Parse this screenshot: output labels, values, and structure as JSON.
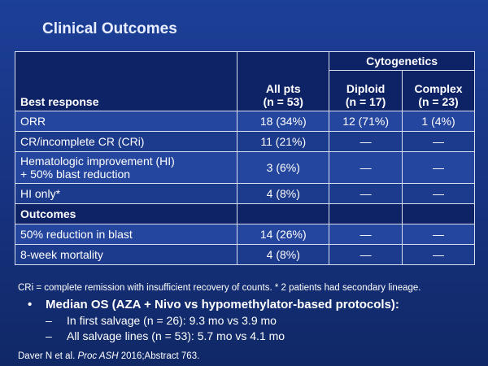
{
  "title": "Clinical Outcomes",
  "table": {
    "headers": {
      "cytogenetics": "Cytogenetics",
      "best_response": "Best response",
      "all_pts": "All pts",
      "all_pts_n": "(n = 53)",
      "diploid": "Diploid",
      "diploid_n": "(n = 17)",
      "complex": "Complex",
      "complex_n": "(n = 23)"
    },
    "rows": [
      {
        "label": "ORR",
        "all": "18 (34%)",
        "diploid": "12 (71%)",
        "complex": "1 (4%)"
      },
      {
        "label": "CR/incomplete CR (CRi)",
        "all": "11 (21%)",
        "diploid": "—",
        "complex": "—"
      },
      {
        "label_line1": "Hematologic improvement (HI)",
        "label_line2": "+ 50% blast reduction",
        "all": "3 (6%)",
        "diploid": "—",
        "complex": "—"
      },
      {
        "label": "HI only*",
        "all": "4 (8%)",
        "diploid": "—",
        "complex": "—"
      }
    ],
    "section": "Outcomes",
    "outcome_rows": [
      {
        "label": "50% reduction in blast",
        "all": "14 (26%)",
        "diploid": "—",
        "complex": "—"
      },
      {
        "label": "8-week mortality",
        "all": "4 (8%)",
        "diploid": "—",
        "complex": "—"
      }
    ]
  },
  "footnote": "CRi = complete remission with insufficient recovery of counts. * 2 patients had secondary lineage.",
  "bullet": {
    "mark": "•",
    "text": "Median OS (AZA + Nivo vs hypomethylator-based protocols):",
    "subs": [
      {
        "dash": "–",
        "text": "In first salvage (n = 26): 9.3 mo vs 3.9 mo"
      },
      {
        "dash": "–",
        "text": "All salvage lines (n = 53): 5.7 mo  vs 4.1 mo"
      }
    ]
  },
  "citation": {
    "prefix": "Daver N et al. ",
    "journal": "Proc ASH",
    "suffix": " 2016;Abstract 763."
  }
}
